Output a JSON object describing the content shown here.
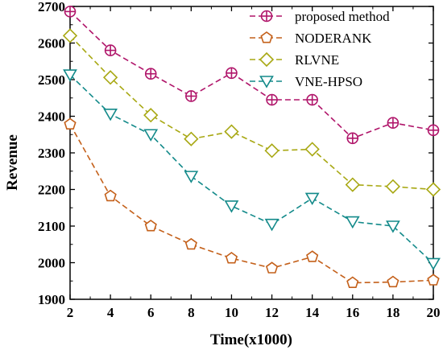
{
  "chart_data": {
    "type": "line",
    "title": "",
    "xlabel": "Time(x1000)",
    "ylabel": "Revenue",
    "xlim": [
      2,
      20
    ],
    "ylim": [
      1900,
      2700
    ],
    "x": [
      2,
      4,
      6,
      8,
      10,
      12,
      14,
      16,
      18,
      20
    ],
    "x_ticks": [
      2,
      4,
      6,
      8,
      10,
      12,
      14,
      16,
      18,
      20
    ],
    "y_ticks": [
      1900,
      2000,
      2100,
      2200,
      2300,
      2400,
      2500,
      2600,
      2700
    ],
    "grid": false,
    "legend_position": "top-right",
    "series": [
      {
        "name": "proposed method",
        "marker": "circle-cross",
        "color": "#b0156a",
        "values": [
          2686,
          2580,
          2516,
          2455,
          2518,
          2445,
          2445,
          2340,
          2382,
          2362
        ]
      },
      {
        "name": "NODERANK",
        "marker": "pentagon",
        "color": "#c4601a",
        "values": [
          2378,
          2182,
          2100,
          2050,
          2012,
          1985,
          2016,
          1945,
          1947,
          1952
        ]
      },
      {
        "name": "RLVNE",
        "marker": "diamond",
        "color": "#a8a813",
        "values": [
          2620,
          2506,
          2403,
          2338,
          2358,
          2306,
          2310,
          2213,
          2208,
          2200
        ]
      },
      {
        "name": "VNE-HPSO",
        "marker": "triangle-down",
        "color": "#138a8a",
        "values": [
          2513,
          2406,
          2350,
          2236,
          2155,
          2105,
          2176,
          2112,
          2100,
          1998
        ]
      }
    ]
  }
}
